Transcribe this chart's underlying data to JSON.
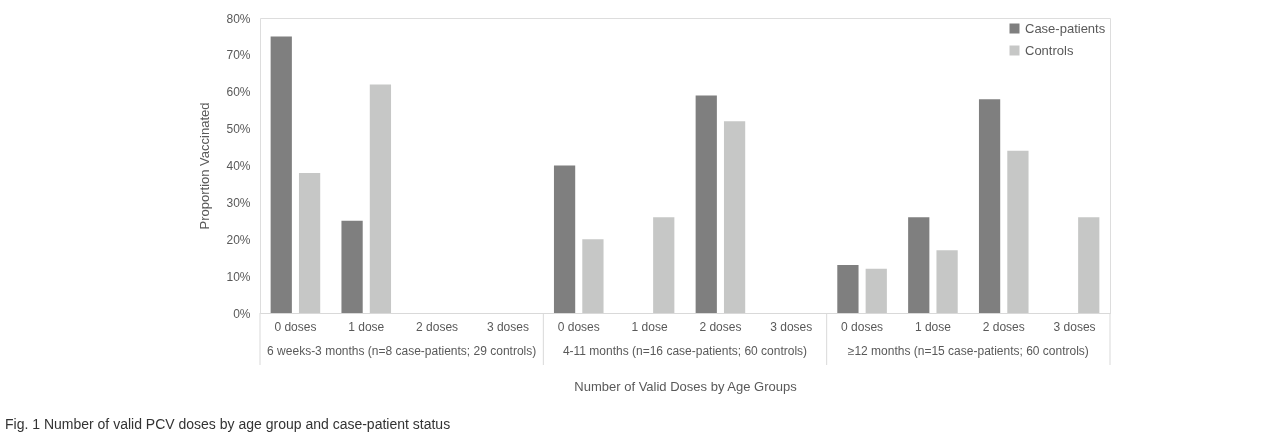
{
  "chart_data": {
    "type": "bar",
    "categories": [
      "0 doses",
      "1 dose",
      "2 doses",
      "3 doses",
      "0 doses",
      "1 dose",
      "2 doses",
      "3 doses",
      "0 doses",
      "1 dose",
      "2 doses",
      "3 doses"
    ],
    "series": [
      {
        "name": "Case-patients",
        "color": "#7f7f7f",
        "values": [
          75,
          25,
          0,
          0,
          40,
          0,
          59,
          0,
          13,
          26,
          58,
          0
        ]
      },
      {
        "name": "Controls",
        "color": "#c6c7c6",
        "values": [
          38,
          62,
          0,
          0,
          20,
          26,
          52,
          0,
          12,
          17,
          44,
          26
        ]
      }
    ],
    "xlabel": "Number of Valid Doses by Age Groups",
    "ylabel": "Proportion Vaccinated",
    "ylim": [
      0,
      80
    ],
    "yticks": [
      {
        "value": 0,
        "label": "0%"
      },
      {
        "value": 10,
        "label": "10%"
      },
      {
        "value": 20,
        "label": "20%"
      },
      {
        "value": 30,
        "label": "30%"
      },
      {
        "value": 40,
        "label": "40%"
      },
      {
        "value": 50,
        "label": "50%"
      },
      {
        "value": 60,
        "label": "60%"
      },
      {
        "value": 70,
        "label": "70%"
      },
      {
        "value": 80,
        "label": "80%"
      }
    ],
    "annotations": [
      "6 weeks-3 months (n=8 case-patients; 29 controls)",
      "4-11 months (n=16 case-patients; 60 controls)",
      "≥12 months (n=15 case-patients; 60 controls)",
      "Fig. 1 Number of valid PCV doses by age group and case-patient status"
    ],
    "legend": "top right",
    "grid": false
  }
}
